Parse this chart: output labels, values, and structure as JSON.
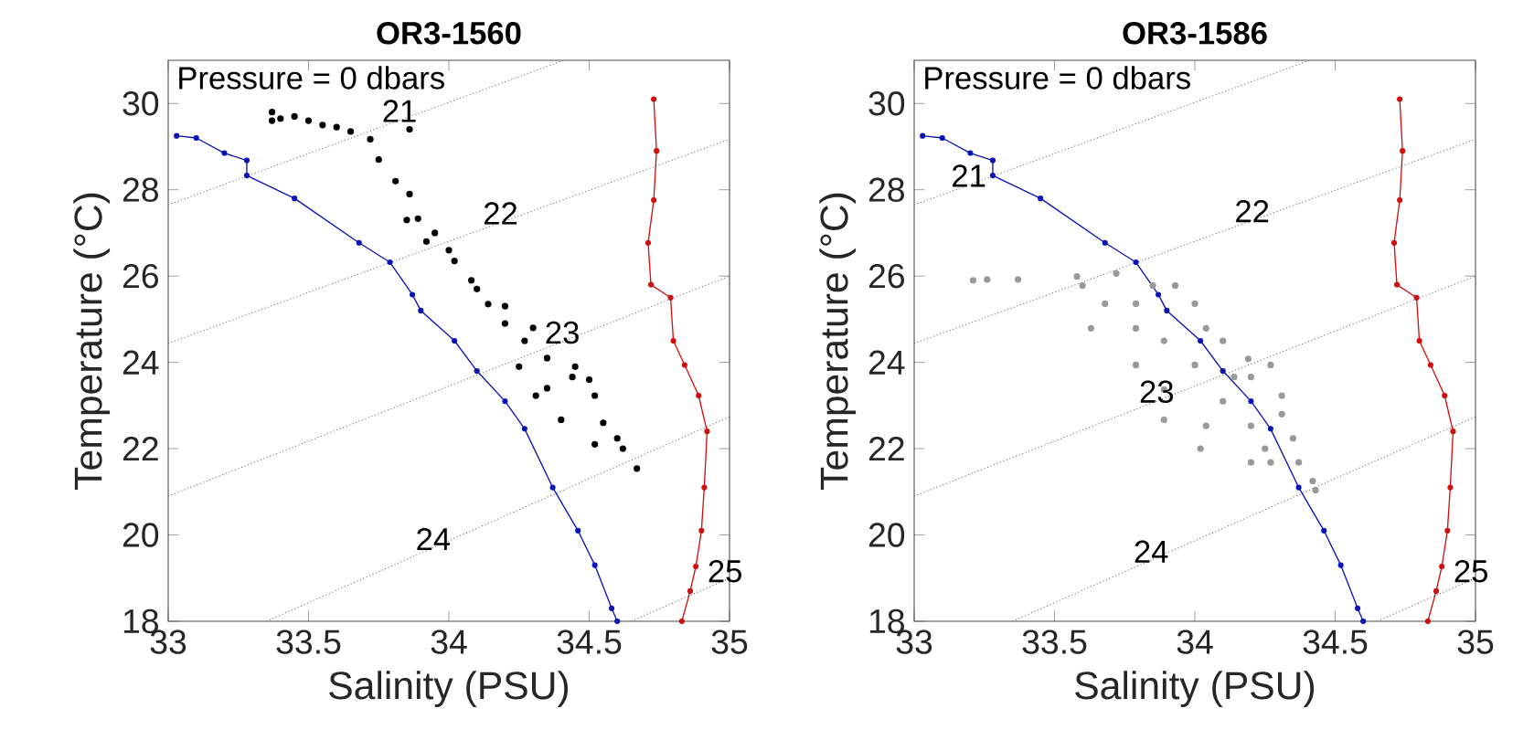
{
  "chart_data": [
    {
      "type": "scatter",
      "title": "OR3-1560",
      "xlabel": "Salinity (PSU)",
      "ylabel": "Temperature (°C)",
      "xlim": [
        33,
        35
      ],
      "ylim": [
        18,
        31
      ],
      "xticks": [
        33,
        33.5,
        34,
        34.5,
        35
      ],
      "yticks": [
        18,
        20,
        22,
        24,
        26,
        28,
        30
      ],
      "annotations": [
        "Pressure = 0 dbars",
        {
          "text": "21",
          "x": 33.79,
          "y": 29.53
        },
        {
          "text": "22",
          "x": 34.15,
          "y": 27.16
        },
        {
          "text": "23",
          "x": 34.37,
          "y": 24.39
        },
        {
          "text": "24",
          "x": 33.91,
          "y": 19.61
        },
        {
          "text": "25",
          "x": 34.95,
          "y": 18.86
        }
      ],
      "series": [
        {
          "type": "line",
          "color": "#666666",
          "line_style": "dotted",
          "marker": "none",
          "x": [
            33,
            34.41
          ],
          "values": [
            27.65,
            31
          ]
        },
        {
          "type": "line",
          "color": "#666666",
          "line_style": "dotted",
          "marker": "none",
          "x": [
            33,
            35
          ],
          "values": [
            24.44,
            29.17
          ]
        },
        {
          "type": "line",
          "color": "#666666",
          "line_style": "dotted",
          "marker": "none",
          "x": [
            33,
            35
          ],
          "values": [
            20.9,
            26.0
          ]
        },
        {
          "type": "line",
          "color": "#666666",
          "line_style": "dotted",
          "marker": "none",
          "x": [
            33.35,
            35
          ],
          "values": [
            18,
            22.74
          ]
        },
        {
          "type": "line",
          "color": "#666666",
          "line_style": "dotted",
          "marker": "none",
          "x": [
            34.65,
            35
          ],
          "values": [
            18,
            19.0
          ]
        },
        {
          "type": "line",
          "color": "#0a14b4",
          "line_style": "solid",
          "marker": "circle",
          "x": [
            33.03,
            33.1,
            33.2,
            33.28,
            33.28,
            33.45,
            33.68,
            33.79,
            33.87,
            33.9,
            34.02,
            34.1,
            34.2,
            34.27,
            34.37,
            34.46,
            34.52,
            34.58,
            34.6
          ],
          "values": [
            29.25,
            29.2,
            28.85,
            28.68,
            28.33,
            27.8,
            26.77,
            26.32,
            25.57,
            25.2,
            24.5,
            23.8,
            23.1,
            22.46,
            21.1,
            20.1,
            19.3,
            18.3,
            18.0
          ]
        },
        {
          "type": "line",
          "color": "#d01010",
          "line_style": "solid",
          "marker": "circle",
          "x": [
            34.73,
            34.74,
            34.73,
            34.71,
            34.72,
            34.79,
            34.8,
            34.84,
            34.89,
            34.92,
            34.91,
            34.9,
            34.88,
            34.86,
            34.83
          ],
          "values": [
            30.1,
            28.9,
            27.76,
            26.77,
            25.8,
            25.5,
            24.5,
            23.94,
            23.23,
            22.4,
            21.1,
            20.1,
            19.27,
            18.7,
            18.0
          ]
        },
        {
          "type": "scatter",
          "color": "#000000",
          "marker": "circle",
          "x": [
            33.37,
            33.37,
            33.4,
            33.45,
            33.5,
            33.55,
            33.6,
            33.65,
            33.72,
            33.75,
            33.81,
            33.86,
            33.89,
            33.95,
            34.02,
            34.08,
            34.14,
            34.2,
            34.27,
            34.35,
            34.44,
            34.52,
            34.6,
            34.67,
            33.86,
            33.85,
            33.92,
            34.0,
            34.1,
            34.2,
            34.3,
            34.31,
            34.4,
            34.52,
            34.45,
            34.5,
            34.25,
            34.35,
            34.55,
            34.62
          ],
          "values": [
            29.8,
            29.6,
            29.65,
            29.7,
            29.6,
            29.5,
            29.45,
            29.35,
            29.17,
            28.7,
            28.2,
            27.9,
            27.33,
            27.0,
            26.35,
            25.9,
            25.35,
            24.9,
            24.5,
            24.1,
            23.66,
            23.23,
            22.24,
            21.54,
            29.4,
            27.3,
            26.8,
            26.6,
            25.7,
            25.3,
            24.8,
            23.23,
            22.67,
            22.1,
            23.9,
            23.6,
            23.9,
            23.4,
            22.6,
            22.0
          ]
        }
      ]
    },
    {
      "type": "scatter",
      "title": "OR3-1586",
      "xlabel": "Salinity (PSU)",
      "ylabel": "Temperature (°C)",
      "xlim": [
        33,
        35
      ],
      "ylim": [
        18,
        31
      ],
      "xticks": [
        33,
        33.5,
        34,
        34.5,
        35
      ],
      "yticks": [
        18,
        20,
        22,
        24,
        26,
        28,
        30
      ],
      "annotations": [
        "Pressure = 0 dbars",
        {
          "text": "21",
          "x": 33.16,
          "y": 28.03
        },
        {
          "text": "22",
          "x": 34.17,
          "y": 27.21
        },
        {
          "text": "23",
          "x": 33.83,
          "y": 23.02
        },
        {
          "text": "24",
          "x": 33.81,
          "y": 19.32
        },
        {
          "text": "25",
          "x": 34.95,
          "y": 18.86
        }
      ],
      "series": [
        {
          "type": "line",
          "color": "#666666",
          "line_style": "dotted",
          "marker": "none",
          "x": [
            33,
            34.41
          ],
          "values": [
            27.65,
            31
          ]
        },
        {
          "type": "line",
          "color": "#666666",
          "line_style": "dotted",
          "marker": "none",
          "x": [
            33,
            35
          ],
          "values": [
            24.44,
            29.17
          ]
        },
        {
          "type": "line",
          "color": "#666666",
          "line_style": "dotted",
          "marker": "none",
          "x": [
            33,
            35
          ],
          "values": [
            20.9,
            26.0
          ]
        },
        {
          "type": "line",
          "color": "#666666",
          "line_style": "dotted",
          "marker": "none",
          "x": [
            33.35,
            35
          ],
          "values": [
            18,
            22.74
          ]
        },
        {
          "type": "line",
          "color": "#666666",
          "line_style": "dotted",
          "marker": "none",
          "x": [
            34.65,
            35
          ],
          "values": [
            18,
            19.0
          ]
        },
        {
          "type": "line",
          "color": "#0a14b4",
          "line_style": "solid",
          "marker": "circle",
          "x": [
            33.03,
            33.1,
            33.2,
            33.28,
            33.28,
            33.45,
            33.68,
            33.79,
            33.87,
            33.9,
            34.02,
            34.1,
            34.2,
            34.27,
            34.37,
            34.46,
            34.52,
            34.58,
            34.6
          ],
          "values": [
            29.25,
            29.2,
            28.85,
            28.68,
            28.33,
            27.8,
            26.77,
            26.32,
            25.57,
            25.2,
            24.5,
            23.8,
            23.1,
            22.46,
            21.1,
            20.1,
            19.3,
            18.3,
            18.0
          ]
        },
        {
          "type": "line",
          "color": "#d01010",
          "line_style": "solid",
          "marker": "circle",
          "x": [
            34.73,
            34.74,
            34.73,
            34.71,
            34.72,
            34.79,
            34.8,
            34.84,
            34.89,
            34.92,
            34.91,
            34.9,
            34.88,
            34.86,
            34.83
          ],
          "values": [
            30.1,
            28.9,
            27.76,
            26.77,
            25.8,
            25.5,
            24.5,
            23.94,
            23.23,
            22.4,
            21.1,
            20.1,
            19.27,
            18.7,
            18.0
          ]
        },
        {
          "type": "scatter",
          "color": "#999999",
          "marker": "circle",
          "x": [
            33.21,
            33.26,
            33.37,
            33.58,
            33.72,
            33.85,
            33.63,
            33.68,
            33.79,
            33.89,
            34.0,
            33.79,
            33.89,
            34.04,
            34.2,
            34.1,
            34.2,
            34.1,
            34.0,
            33.93,
            34.31,
            34.35,
            34.37,
            34.42,
            34.43,
            34.27,
            34.25,
            34.02,
            33.89,
            34.14,
            34.27,
            34.19,
            34.04,
            33.79,
            33.6,
            34.31,
            34.2
          ],
          "values": [
            25.9,
            25.92,
            25.92,
            25.99,
            26.06,
            25.78,
            24.79,
            25.36,
            24.79,
            24.5,
            23.94,
            23.94,
            23.37,
            22.53,
            22.53,
            23.1,
            23.66,
            24.5,
            25.36,
            25.78,
            22.8,
            22.24,
            21.68,
            21.25,
            21.04,
            21.68,
            22.0,
            22.0,
            22.67,
            23.66,
            23.94,
            24.08,
            24.79,
            25.36,
            25.78,
            23.23,
            21.68
          ]
        }
      ]
    }
  ]
}
